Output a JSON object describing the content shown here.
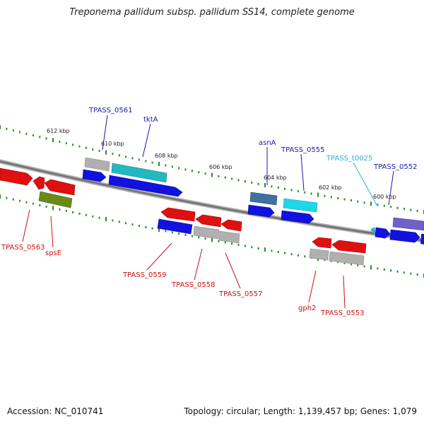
{
  "title": "Treponema pallidum subsp. pallidum SS14, complete genome",
  "footer": {
    "accession": "Accession: NC_010741",
    "summary": "Topology: circular; Length: 1,139,457 bp; Genes: 1,079"
  },
  "colors": {
    "backbone": "#808080",
    "tick": "#2a8a2a",
    "label_top": "#1a1aa8",
    "label_bottom": "#cc1111",
    "label_rna": "#2ab0d8",
    "feature_blue": "#1212e0",
    "feature_red": "#e01010",
    "feature_gray": "#b0b0b0",
    "feature_teal": "#22b8c0",
    "feature_cyan": "#1ed8ea",
    "feature_olive": "#6a8a18",
    "feature_steel": "#4070a0",
    "feature_purple": "#7060c8"
  },
  "kbp_labels": [
    "612 kbp",
    "610 kbp",
    "608 kbp",
    "606 kbp",
    "604 kbp",
    "602 kbp",
    "600 kbp"
  ],
  "gene_labels_top": [
    "TPASS_0561",
    "tktA",
    "asnA",
    "TPASS_0555",
    "TPASS_t0025",
    "TPASS_0552"
  ],
  "gene_labels_bottom": [
    "TPASS_0563",
    "spsE",
    "TPASS_0559",
    "TPASS_0558",
    "TPASS_0557",
    "gph2",
    "TPASS_0553"
  ]
}
